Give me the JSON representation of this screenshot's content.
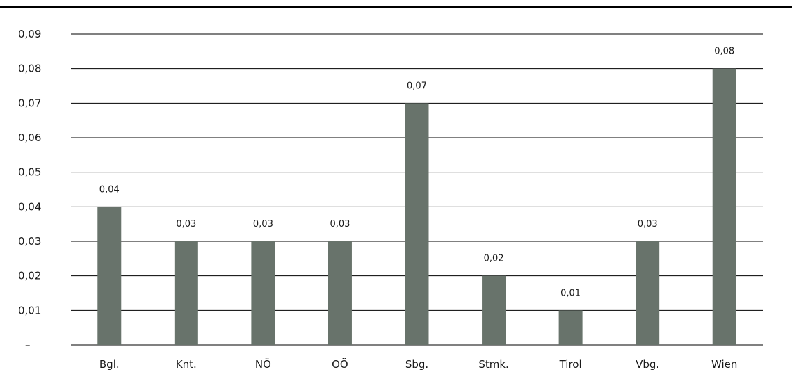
{
  "chart_data": {
    "type": "bar",
    "categories": [
      "Bgl.",
      "Knt.",
      "NÖ",
      "OÖ",
      "Sbg.",
      "Stmk.",
      "Tirol",
      "Vbg.",
      "Wien"
    ],
    "values": [
      0.04,
      0.03,
      0.03,
      0.03,
      0.07,
      0.02,
      0.01,
      0.03,
      0.08
    ],
    "data_labels": [
      "0,04",
      "0,03",
      "0,03",
      "0,03",
      "0,07",
      "0,02",
      "0,01",
      "0,03",
      "0,08"
    ],
    "y_tick_labels": [
      "–",
      "0,01",
      "0,02",
      "0,03",
      "0,04",
      "0,05",
      "0,06",
      "0,07",
      "0,08",
      "0,09"
    ],
    "y_ticks": [
      0,
      0.01,
      0.02,
      0.03,
      0.04,
      0.05,
      0.06,
      0.07,
      0.08,
      0.09
    ],
    "ylim": [
      0,
      0.09
    ],
    "title": "",
    "xlabel": "",
    "ylabel": "",
    "grid": true,
    "legend": "none",
    "bar_color": "#68736b"
  }
}
